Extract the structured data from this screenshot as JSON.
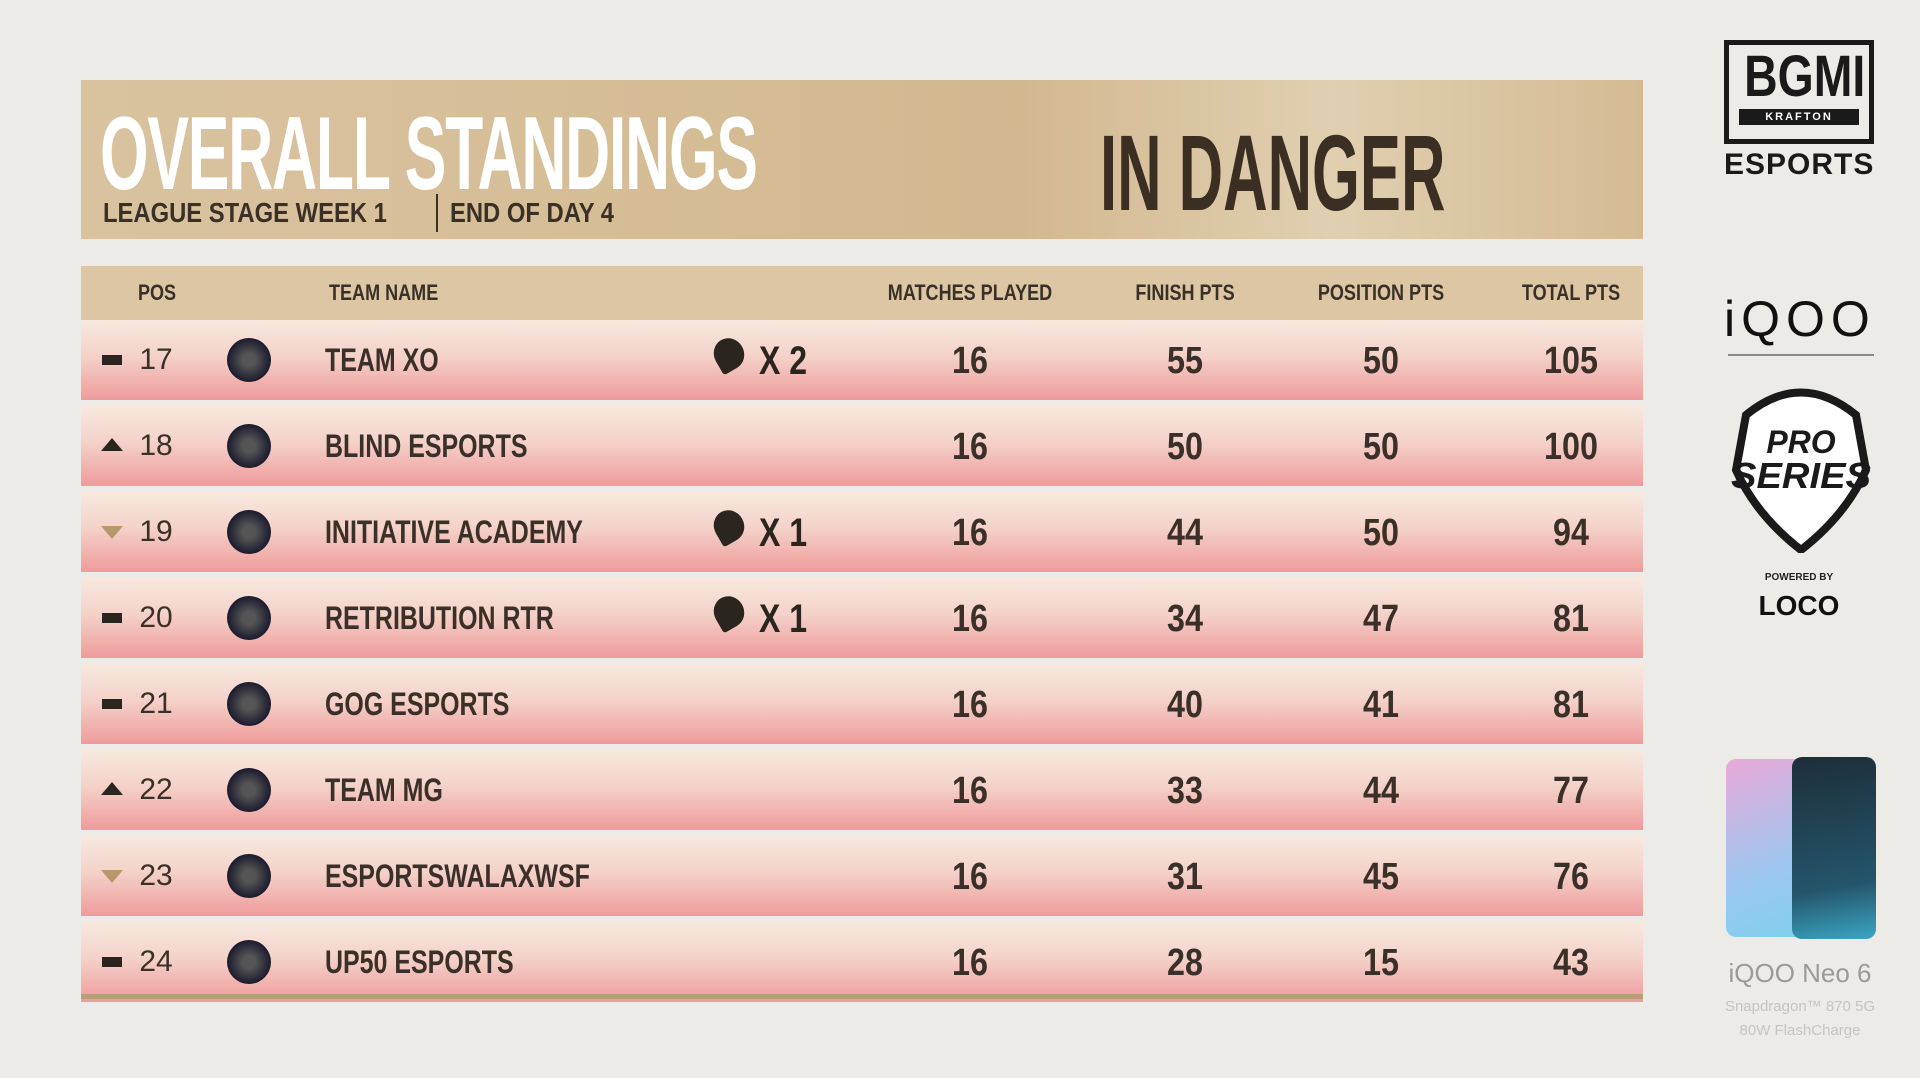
{
  "header": {
    "title": "OVERALL STANDINGS",
    "subtitle": [
      "LEAGUE STAGE WEEK 1",
      "END OF DAY 4"
    ],
    "status": "IN DANGER"
  },
  "table": {
    "columns": [
      "POS",
      "TEAM NAME",
      "MATCHES PLAYED",
      "FINISH PTS",
      "POSITION PTS",
      "TOTAL PTS"
    ],
    "rows": [
      {
        "trend": "same",
        "pos": 17,
        "team": "TEAM XO",
        "chicken": "X 2",
        "matches": 16,
        "finish": 55,
        "position": 50,
        "total": 105
      },
      {
        "trend": "up",
        "pos": 18,
        "team": "BLIND ESPORTS",
        "matches": 16,
        "finish": 50,
        "position": 50,
        "total": 100
      },
      {
        "trend": "down",
        "pos": 19,
        "team": "INITIATIVE ACADEMY",
        "chicken": "X 1",
        "matches": 16,
        "finish": 44,
        "position": 50,
        "total": 94
      },
      {
        "trend": "same",
        "pos": 20,
        "team": "RETRIBUTION RTR",
        "chicken": "X 1",
        "matches": 16,
        "finish": 34,
        "position": 47,
        "total": 81
      },
      {
        "trend": "same",
        "pos": 21,
        "team": "GOG ESPORTS",
        "matches": 16,
        "finish": 40,
        "position": 41,
        "total": 81
      },
      {
        "trend": "up",
        "pos": 22,
        "team": "TEAM MG",
        "matches": 16,
        "finish": 33,
        "position": 44,
        "total": 77
      },
      {
        "trend": "down",
        "pos": 23,
        "team": "ESPORTSWALAXWSF",
        "matches": 16,
        "finish": 31,
        "position": 45,
        "total": 76
      },
      {
        "trend": "same",
        "pos": 24,
        "team": "UP50 ESPORTS",
        "matches": 16,
        "finish": 28,
        "position": 15,
        "total": 43
      }
    ]
  },
  "sidebar": {
    "bgmi": "BGMI",
    "krafton": "KRAFTON",
    "esports": "ESPORTS",
    "sponsor": "iQOO",
    "series": [
      "PRO",
      "SERIES"
    ],
    "powered": "POWERED BY",
    "loco": "LOCO",
    "phone": "iQOO Neo 6",
    "specs": [
      "Snapdragon™ 870 5G",
      "80W FlashCharge"
    ]
  }
}
